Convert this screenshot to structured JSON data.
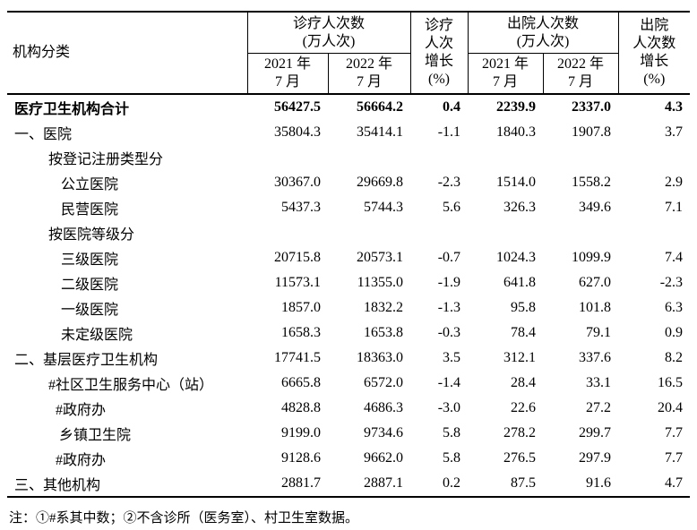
{
  "table": {
    "header": {
      "category": "机构分类",
      "visits": "诊疗人次数\n(万人次)",
      "visits_2021": "2021 年\n7 月",
      "visits_2022": "2022 年\n7 月",
      "visits_growth": "诊疗\n人次\n增长\n(%)",
      "discharges": "出院人次数\n(万人次)",
      "discharges_2021": "2021 年\n7 月",
      "discharges_2022": "2022 年\n7 月",
      "discharges_growth": "出院\n人次数\n增长\n(%)"
    },
    "rows": [
      [
        "医疗卫生机构合计",
        "56427.5",
        "56664.2",
        "0.4",
        "2239.9",
        "2337.0",
        "4.3"
      ],
      [
        "一、医院",
        "35804.3",
        "35414.1",
        "-1.1",
        "1840.3",
        "1907.8",
        "3.7"
      ],
      [
        "按登记注册类型分"
      ],
      [
        "公立医院",
        "30367.0",
        "29669.8",
        "-2.3",
        "1514.0",
        "1558.2",
        "2.9"
      ],
      [
        "民营医院",
        "5437.3",
        "5744.3",
        "5.6",
        "326.3",
        "349.6",
        "7.1"
      ],
      [
        "按医院等级分"
      ],
      [
        "三级医院",
        "20715.8",
        "20573.1",
        "-0.7",
        "1024.3",
        "1099.9",
        "7.4"
      ],
      [
        "二级医院",
        "11573.1",
        "11355.0",
        "-1.9",
        "641.8",
        "627.0",
        "-2.3"
      ],
      [
        "一级医院",
        "1857.0",
        "1832.2",
        "-1.3",
        "95.8",
        "101.8",
        "6.3"
      ],
      [
        "未定级医院",
        "1658.3",
        "1653.8",
        "-0.3",
        "78.4",
        "79.1",
        "0.9"
      ],
      [
        "二、基层医疗卫生机构",
        "17741.5",
        "18363.0",
        "3.5",
        "312.1",
        "337.6",
        "8.2"
      ],
      [
        "#社区卫生服务中心（站）",
        "6665.8",
        "6572.0",
        "-1.4",
        "28.4",
        "33.1",
        "16.5"
      ],
      [
        "#政府办",
        "4828.8",
        "4686.3",
        "-3.0",
        "22.6",
        "27.2",
        "20.4"
      ],
      [
        "乡镇卫生院",
        "9199.0",
        "9734.6",
        "5.8",
        "278.2",
        "299.7",
        "7.7"
      ],
      [
        "#政府办",
        "9128.6",
        "9662.0",
        "5.8",
        "276.5",
        "297.9",
        "7.7"
      ],
      [
        "三、其他机构",
        "2881.7",
        "2887.1",
        "0.2",
        "87.5",
        "91.6",
        "4.7"
      ]
    ]
  },
  "note": "注：①#系其中数；②不含诊所（医务室）、村卫生室数据。"
}
